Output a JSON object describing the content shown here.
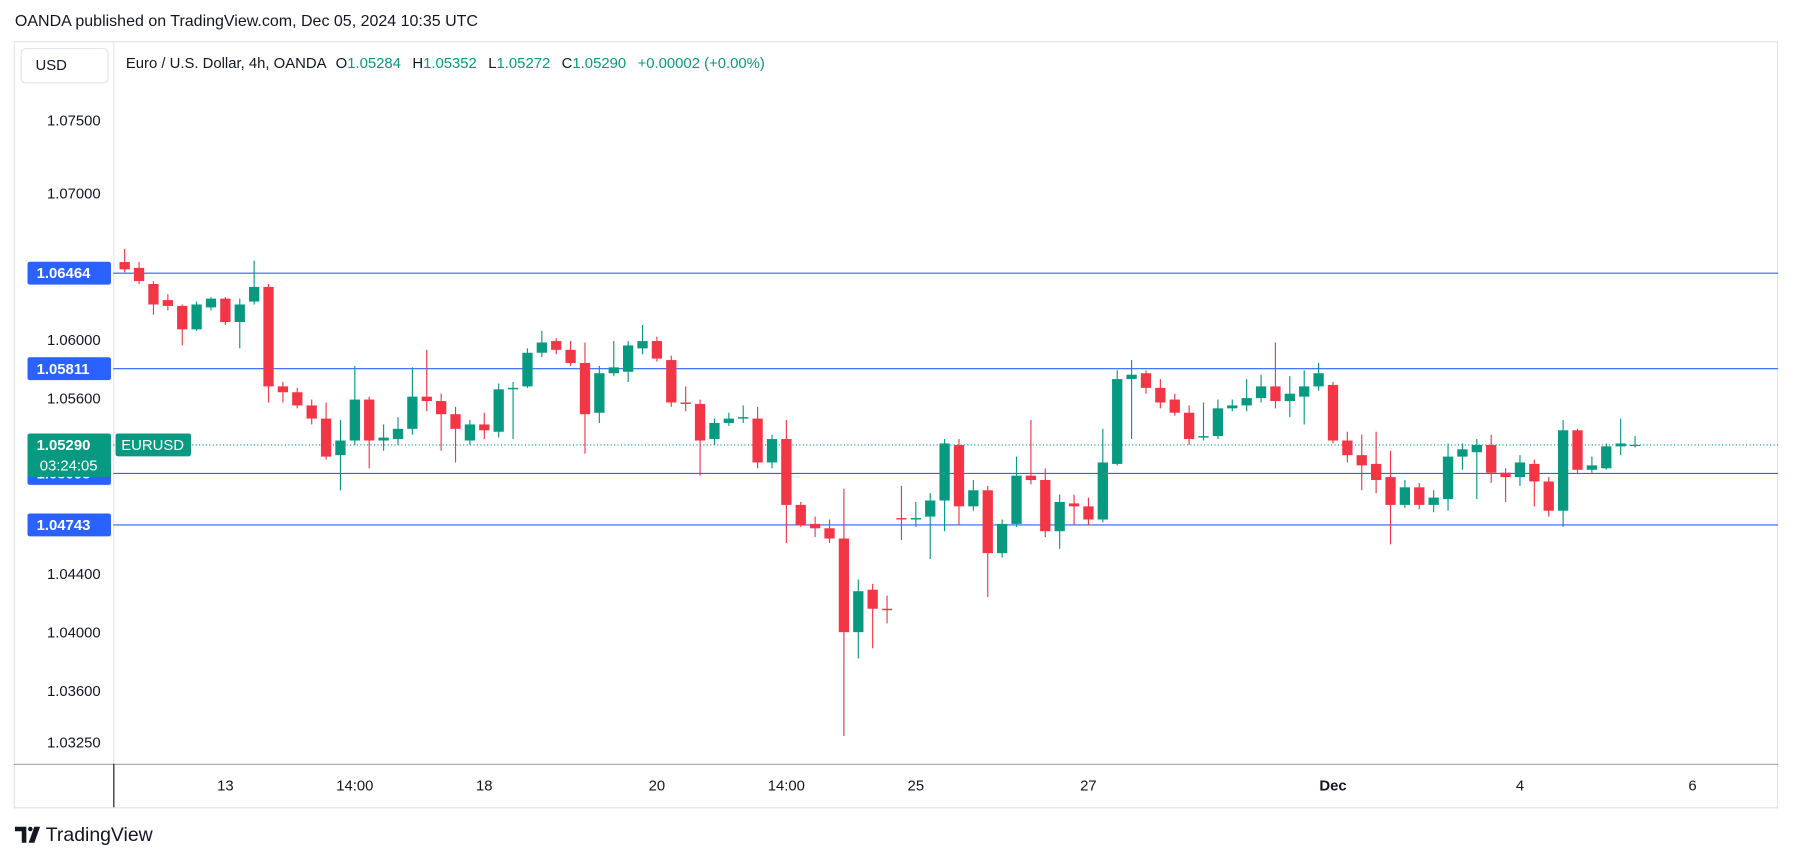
{
  "header": {
    "published": "OANDA published on TradingView.com, Dec 05, 2024 10:35 UTC"
  },
  "footer": {
    "brand": "TradingView"
  },
  "chart_data": {
    "type": "candlestick",
    "currency": "USD",
    "legend": {
      "title": "Euro / U.S. Dollar, 4h, OANDA",
      "o_label": "O",
      "o": "1.05284",
      "h_label": "H",
      "h": "1.05352",
      "l_label": "L",
      "l": "1.05272",
      "c_label": "C",
      "c": "1.05290",
      "change": "+0.00002 (+0.00%)"
    },
    "categories": [
      null,
      null,
      null,
      null,
      null,
      null,
      null,
      "13",
      null,
      null,
      null,
      null,
      null,
      null,
      null,
      null,
      "14:00",
      null,
      null,
      null,
      null,
      null,
      null,
      null,
      null,
      "18",
      null,
      null,
      null,
      null,
      null,
      null,
      null,
      null,
      null,
      null,
      null,
      "20",
      null,
      null,
      null,
      null,
      null,
      null,
      null,
      null,
      "14:00",
      null,
      null,
      null,
      null,
      null,
      null,
      null,
      null,
      "25",
      null,
      null,
      null,
      null,
      null,
      null,
      null,
      null,
      null,
      null,
      null,
      "27",
      null,
      null,
      null,
      null,
      null,
      null,
      null,
      null,
      null,
      null,
      null,
      null,
      null,
      null,
      null,
      null,
      "Dec",
      null,
      null,
      null,
      null,
      null,
      null,
      null,
      null,
      null,
      null,
      null,
      null,
      "4",
      null,
      null,
      null,
      null,
      null,
      null,
      null,
      null,
      null,
      null,
      null,
      "6"
    ],
    "open": [
      1.0654,
      1.065,
      1.0639,
      1.0628,
      1.0624,
      1.0608,
      1.0623,
      1.0629,
      1.0613,
      1.0627,
      1.0637,
      1.0569,
      1.0565,
      1.0556,
      1.0547,
      1.0522,
      1.0532,
      1.056,
      1.0532,
      1.0533,
      1.054,
      1.0562,
      1.0559,
      1.055,
      1.0532,
      1.0543,
      1.0538,
      1.0567,
      1.0569,
      1.0592,
      1.06,
      1.0594,
      1.0585,
      1.0551,
      1.0578,
      1.0579,
      1.0595,
      1.06,
      1.0587,
      1.0558,
      1.0557,
      1.0533,
      1.0544,
      1.0547,
      1.0547,
      1.0517,
      1.0533,
      1.0488,
      1.0475,
      1.0472,
      1.0465,
      1.0401,
      1.043,
      1.0417,
      1.0479,
      1.0478,
      1.048,
      1.0491,
      1.0529,
      1.0487,
      1.0498,
      1.0455,
      1.0475,
      1.0508,
      1.0505,
      1.047,
      1.0489,
      1.0487,
      1.0478,
      1.0516,
      1.0574,
      1.0578,
      1.0568,
      1.056,
      1.0551,
      1.0534,
      1.0535,
      1.0554,
      1.0556,
      1.0561,
      1.0569,
      1.0559,
      1.0562,
      1.0569,
      1.057,
      1.0532,
      1.0522,
      1.0516,
      1.0507,
      1.0488,
      1.05,
      1.0488,
      1.0492,
      1.0521,
      1.0524,
      1.0529,
      1.051,
      1.0507,
      1.0516,
      1.0504,
      1.0484,
      1.0539,
      1.0512,
      1.0513,
      1.0528,
      1.05284,
      null,
      null,
      null,
      null
    ],
    "high": [
      1.0663,
      1.0654,
      1.0641,
      1.0632,
      1.0625,
      1.0627,
      1.063,
      1.063,
      1.0629,
      1.0655,
      1.0639,
      1.0572,
      1.0568,
      1.056,
      1.0558,
      1.0546,
      1.0583,
      1.0562,
      1.0543,
      1.0548,
      1.0582,
      1.0594,
      1.0564,
      1.0555,
      1.0546,
      1.0551,
      1.0571,
      1.0572,
      1.0595,
      1.0607,
      1.0602,
      1.06,
      1.0599,
      1.0583,
      1.06,
      1.06,
      1.0611,
      1.0603,
      1.059,
      1.0569,
      1.056,
      1.0547,
      1.0551,
      1.0556,
      1.0555,
      1.0536,
      1.0546,
      1.049,
      1.048,
      1.0478,
      1.0499,
      1.0437,
      1.0434,
      1.0426,
      1.0501,
      1.049,
      1.0496,
      1.0533,
      1.0533,
      1.0505,
      1.0501,
      1.0478,
      1.0521,
      1.0546,
      1.0513,
      1.0495,
      1.0495,
      1.0493,
      1.054,
      1.058,
      1.0587,
      1.058,
      1.0574,
      1.0564,
      1.0556,
      1.0558,
      1.056,
      1.056,
      1.0574,
      1.0577,
      1.0599,
      1.0576,
      1.058,
      1.0585,
      1.0572,
      1.0538,
      1.0536,
      1.0538,
      1.0525,
      1.0505,
      1.0503,
      1.0498,
      1.053,
      1.053,
      1.0533,
      1.0536,
      1.0513,
      1.0522,
      1.0519,
      1.0507,
      1.0546,
      1.054,
      1.0521,
      1.053,
      1.0547,
      1.05352,
      null,
      null,
      null,
      null
    ],
    "low": [
      1.0647,
      1.0639,
      1.0618,
      1.0621,
      1.0597,
      1.0607,
      1.0621,
      1.0611,
      1.0595,
      1.0625,
      1.0558,
      1.0558,
      1.0554,
      1.0543,
      1.0519,
      1.0498,
      1.0529,
      1.0513,
      1.0525,
      1.0529,
      1.0536,
      1.0552,
      1.0525,
      1.0517,
      1.0529,
      1.0533,
      1.0534,
      1.0533,
      1.0568,
      1.0589,
      1.0591,
      1.0583,
      1.0523,
      1.0544,
      1.0576,
      1.0572,
      1.0591,
      1.0586,
      1.0555,
      1.0552,
      1.0508,
      1.0529,
      1.0542,
      1.0544,
      1.0513,
      1.0513,
      1.0462,
      1.0473,
      1.0466,
      1.0462,
      1.033,
      1.0383,
      1.039,
      1.0407,
      1.0464,
      1.0473,
      1.0451,
      1.047,
      1.0474,
      1.0484,
      1.0425,
      1.0452,
      1.0473,
      1.0502,
      1.0466,
      1.0458,
      1.0474,
      1.0474,
      1.0476,
      1.0515,
      1.0533,
      1.0564,
      1.0554,
      1.0549,
      1.0529,
      1.0532,
      1.0533,
      1.0552,
      1.0552,
      1.0558,
      1.0554,
      1.0548,
      1.0543,
      1.0566,
      1.053,
      1.0517,
      1.0498,
      1.0496,
      1.0461,
      1.0486,
      1.0485,
      1.0483,
      1.0484,
      1.0512,
      1.0492,
      1.0503,
      1.049,
      1.0501,
      1.0487,
      1.048,
      1.0473,
      1.0509,
      1.051,
      1.0512,
      1.0522,
      1.05272,
      null,
      null,
      null,
      null
    ],
    "close": [
      1.0649,
      1.0641,
      1.0625,
      1.0624,
      1.0608,
      1.0625,
      1.0629,
      1.0613,
      1.0625,
      1.0637,
      1.0569,
      1.0565,
      1.0556,
      1.0547,
      1.0521,
      1.0532,
      1.056,
      1.0532,
      1.0534,
      1.054,
      1.0562,
      1.0559,
      1.055,
      1.054,
      1.0543,
      1.0539,
      1.0567,
      1.0568,
      1.0592,
      1.0599,
      1.0594,
      1.0585,
      1.055,
      1.0578,
      1.0582,
      1.0597,
      1.06,
      1.0588,
      1.0558,
      1.0557,
      1.0532,
      1.0544,
      1.0547,
      1.0548,
      1.0517,
      1.0533,
      1.0488,
      1.0474,
      1.0472,
      1.0465,
      1.0401,
      1.0429,
      1.0417,
      1.0416,
      1.0478,
      1.0479,
      1.0491,
      1.053,
      1.0487,
      1.0498,
      1.0455,
      1.0475,
      1.0508,
      1.0505,
      1.047,
      1.049,
      1.0487,
      1.0478,
      1.0517,
      1.0574,
      1.0577,
      1.0568,
      1.0558,
      1.0551,
      1.0533,
      1.0535,
      1.0554,
      1.0556,
      1.0561,
      1.0569,
      1.0559,
      1.0564,
      1.0569,
      1.0578,
      1.0532,
      1.0522,
      1.0515,
      1.0505,
      1.0488,
      1.05,
      1.0488,
      1.0493,
      1.0521,
      1.0526,
      1.0529,
      1.051,
      1.0507,
      1.0517,
      1.0504,
      1.0484,
      1.0539,
      1.0512,
      1.0515,
      1.0528,
      1.053,
      1.0529,
      null,
      null,
      null,
      null
    ],
    "up_color": "#089981",
    "down_color": "#f23645",
    "ylim": [
      1.0311,
      1.0805
    ],
    "yticks": [
      {
        "value": 1.075,
        "label": "1.07500"
      },
      {
        "value": 1.07,
        "label": "1.07000"
      },
      {
        "value": 1.06,
        "label": "1.06000"
      },
      {
        "value": 1.056,
        "label": "1.05600"
      },
      {
        "value": 1.044,
        "label": "1.04400"
      },
      {
        "value": 1.04,
        "label": "1.04000"
      },
      {
        "value": 1.036,
        "label": "1.03600"
      },
      {
        "value": 1.0325,
        "label": "1.03250"
      }
    ],
    "price_lines": {
      "color": "#2962ff",
      "levels": [
        1.06464,
        1.05811,
        1.05095,
        1.04743
      ]
    },
    "last_price": {
      "symbol": "EURUSD",
      "value": 1.0529,
      "label": "1.05290",
      "countdown": "03:24:05"
    }
  }
}
